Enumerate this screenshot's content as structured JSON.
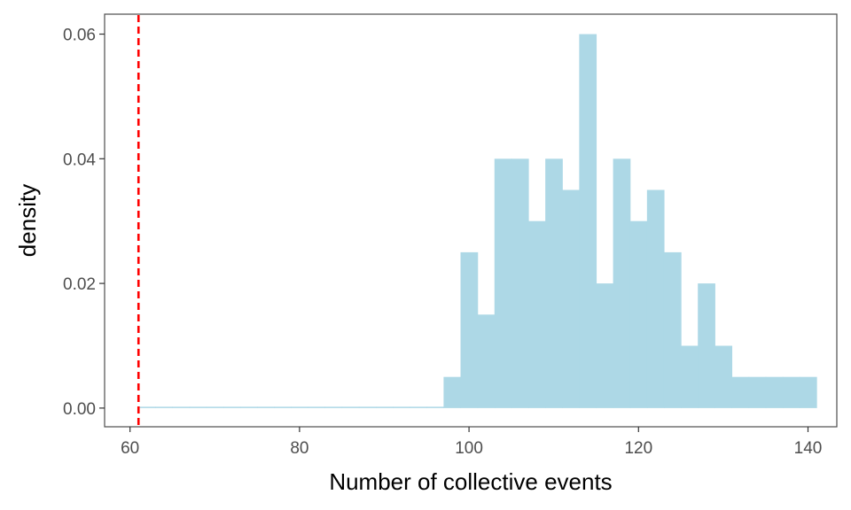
{
  "chart_data": {
    "type": "bar",
    "subtype": "histogram",
    "title": "",
    "xlabel": "Number of collective events",
    "ylabel": "density",
    "xlim": [
      57.0,
      143.4
    ],
    "ylim": [
      -0.003,
      0.0632
    ],
    "x_ticks": [
      60,
      80,
      100,
      120,
      140
    ],
    "x_tick_labels": [
      "60",
      "80",
      "100",
      "120",
      "140"
    ],
    "y_ticks": [
      0,
      0.02,
      0.04,
      0.06
    ],
    "y_tick_labels": [
      "0.00",
      "0.02",
      "0.04",
      "0.06"
    ],
    "bin_width": 2,
    "bin_start": 61,
    "values": [
      0,
      0,
      0,
      0,
      0,
      0,
      0,
      0,
      0,
      0,
      0,
      0,
      0,
      0,
      0,
      0,
      0,
      0,
      0.005,
      0.025,
      0.015,
      0.04,
      0.04,
      0.03,
      0.04,
      0.035,
      0.06,
      0.02,
      0.04,
      0.03,
      0.035,
      0.025,
      0.01,
      0.02,
      0.01,
      0.005,
      0.005,
      0.005,
      0.005,
      0.005
    ],
    "bar_color": "#ADD8E6",
    "reference_line": {
      "x": 61,
      "color": "#FF0000",
      "style": "dashed"
    },
    "grid": false,
    "legend": "none",
    "panel_border_color": "#4d4d4d"
  }
}
